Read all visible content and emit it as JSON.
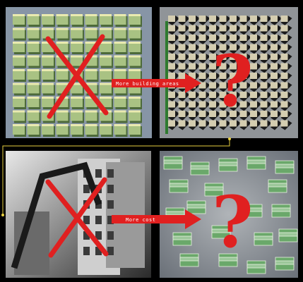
{
  "panels": {
    "top_arrow": {
      "label": "More building areas"
    },
    "bottom_arrow": {
      "label": "More cost"
    },
    "question_mark": "?"
  }
}
